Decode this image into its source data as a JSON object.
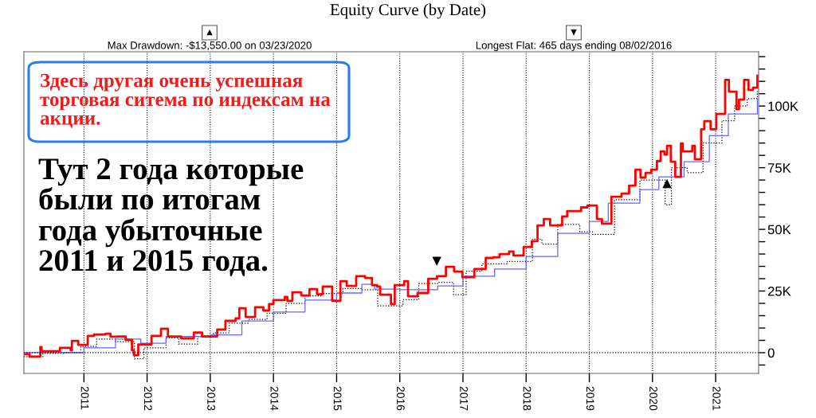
{
  "chart_data": {
    "type": "step",
    "title": "Equity Curve (by Date)",
    "xlim": [
      2010.05,
      2021.68
    ],
    "xticks": [
      2011,
      2012,
      2013,
      2014,
      2015,
      2016,
      2017,
      2018,
      2019,
      2020,
      2021
    ],
    "ylim": [
      -8.4,
      122
    ],
    "yticks": [
      {
        "value": -5,
        "label": null
      },
      0,
      {
        "value": 5,
        "label": null
      },
      {
        "value": 10,
        "label": null
      },
      {
        "value": 15,
        "label": null
      },
      {
        "value": 20,
        "label": null
      },
      {
        "value": 25,
        "label": "25K"
      },
      {
        "value": 30,
        "label": null
      },
      {
        "value": 35,
        "label": null
      },
      {
        "value": 40,
        "label": null
      },
      {
        "value": 45,
        "label": null
      },
      {
        "value": 50,
        "label": "50K"
      },
      {
        "value": 55,
        "label": null
      },
      {
        "value": 60,
        "label": null
      },
      {
        "value": 65,
        "label": null
      },
      {
        "value": 70,
        "label": null
      },
      {
        "value": 75,
        "label": "75K"
      },
      {
        "value": 80,
        "label": null
      },
      {
        "value": 85,
        "label": null
      },
      {
        "value": 90,
        "label": null
      },
      {
        "value": 95,
        "label": null
      },
      {
        "value": 100,
        "label": "100K"
      },
      {
        "value": 105,
        "label": null
      },
      {
        "value": 110,
        "label": null
      },
      {
        "value": 115,
        "label": null
      },
      {
        "value": 120,
        "label": null
      }
    ],
    "grid": "x",
    "ref_lines": [
      {
        "axis": "y",
        "value": 0,
        "label": null,
        "color": "#000000",
        "line_style": "dotted"
      }
    ],
    "series": [
      {
        "color": "#000000",
        "line_style": "dotted",
        "x": [
          2010.05,
          2010.35,
          2010.7,
          2010.95,
          2011.2,
          2011.5,
          2011.8,
          2011.95,
          2012.3,
          2012.5,
          2012.8,
          2013.05,
          2013.3,
          2013.6,
          2013.9,
          2014.2,
          2014.5,
          2014.75,
          2015.1,
          2015.4,
          2015.65,
          2015.85,
          2016.05,
          2016.3,
          2016.6,
          2016.85,
          2017.05,
          2017.3,
          2017.7,
          2018.1,
          2018.25,
          2018.5,
          2018.85,
          2019.05,
          2019.4,
          2019.8,
          2020.2,
          2020.3,
          2020.55,
          2020.8,
          2021.1,
          2021.3,
          2021.5,
          2021.66
        ],
        "values": [
          -1.6,
          -0.3,
          0,
          2.5,
          5.5,
          4.5,
          -2.5,
          2,
          6,
          3.5,
          6.5,
          8,
          12,
          13.5,
          16,
          20,
          23,
          24,
          26,
          25.5,
          19,
          19,
          21.5,
          28,
          28.5,
          23.5,
          33,
          36,
          37,
          46,
          44,
          52,
          49,
          48,
          62,
          70,
          60,
          75,
          73,
          85,
          94,
          100,
          103,
          106
        ]
      },
      {
        "color": "#6666ff",
        "line_style": "solid",
        "x": [
          2010.05,
          2011.0,
          2011.5,
          2011.9,
          2012.3,
          2012.9,
          2013.0,
          2013.5,
          2014.0,
          2014.5,
          2015.0,
          2015.4,
          2015.6,
          2016.0,
          2016.2,
          2016.6,
          2017.0,
          2017.5,
          2018.0,
          2018.5,
          2019.0,
          2019.3,
          2019.8,
          2020.1,
          2020.5,
          2020.9,
          2021.2,
          2021.66
        ],
        "values": [
          0,
          2,
          5.5,
          3.8,
          6.6,
          6.8,
          7.2,
          12.9,
          16.5,
          21.3,
          24.2,
          27.7,
          25.8,
          25.5,
          25.5,
          27.1,
          31,
          33.9,
          39,
          48.4,
          53.2,
          60.6,
          66.1,
          71.3,
          77.4,
          88,
          96.8,
          102.9
        ]
      },
      {
        "color": "#ff0000",
        "line_style": "solid",
        "x": [
          2010.05,
          2010.14,
          2010.31,
          2010.33,
          2010.62,
          2010.79,
          2010.81,
          2010.91,
          2011.06,
          2011.16,
          2011.34,
          2011.42,
          2011.53,
          2011.66,
          2011.76,
          2011.79,
          2011.86,
          2012.07,
          2012.22,
          2012.33,
          2012.54,
          2012.74,
          2012.87,
          2012.99,
          2013.11,
          2013.24,
          2013.4,
          2013.46,
          2013.56,
          2013.71,
          2013.84,
          2013.93,
          2014.0,
          2014.18,
          2014.22,
          2014.3,
          2014.44,
          2014.57,
          2014.69,
          2014.78,
          2014.93,
          2015.06,
          2015.16,
          2015.31,
          2015.45,
          2015.56,
          2015.64,
          2015.69,
          2015.86,
          2015.92,
          2016.07,
          2016.13,
          2016.28,
          2016.45,
          2016.59,
          2016.73,
          2016.86,
          2016.99,
          2017.18,
          2017.36,
          2017.48,
          2017.58,
          2017.73,
          2017.8,
          2017.96,
          2018.09,
          2018.18,
          2018.28,
          2018.38,
          2018.57,
          2018.65,
          2018.87,
          2018.97,
          2019.12,
          2019.2,
          2019.35,
          2019.51,
          2019.63,
          2019.73,
          2019.81,
          2019.89,
          2019.98,
          2020.07,
          2020.13,
          2020.19,
          2020.23,
          2020.29,
          2020.36,
          2020.45,
          2020.48,
          2020.63,
          2020.67,
          2020.77,
          2020.82,
          2020.92,
          2021.01,
          2021.15,
          2021.21,
          2021.33,
          2021.37,
          2021.45,
          2021.52,
          2021.59,
          2021.66
        ],
        "values": [
          -0.6,
          -1.6,
          2.3,
          0.6,
          2,
          1,
          4.8,
          3.2,
          6.8,
          7.4,
          7.7,
          6.5,
          6.6,
          5.2,
          1,
          -1,
          3.3,
          6.8,
          9.7,
          6.6,
          5.8,
          8.2,
          6.6,
          6.6,
          9.4,
          12.9,
          13.9,
          18,
          14.5,
          18.4,
          17.1,
          19.7,
          21.3,
          22.6,
          21,
          24.5,
          23.2,
          25.8,
          23.7,
          26.8,
          21,
          29,
          27.1,
          31,
          30.3,
          27.4,
          26.8,
          23.5,
          19.7,
          27.4,
          29,
          22.9,
          24.2,
          30,
          31,
          34.8,
          32.9,
          30.6,
          33.9,
          38.4,
          38.7,
          40,
          41,
          39.4,
          42.9,
          45.2,
          51.6,
          54.2,
          51.6,
          55.2,
          57.4,
          58.9,
          59.7,
          54.2,
          52.3,
          63.2,
          64.5,
          67.7,
          74.2,
          71,
          72.9,
          74.2,
          77.7,
          81.6,
          80.3,
          83.9,
          77.4,
          71.3,
          84.8,
          81.6,
          83.9,
          78.4,
          90.6,
          93.9,
          90.6,
          96.8,
          110.6,
          105.8,
          98.7,
          102.6,
          110.6,
          106.5,
          107.4,
          112.3
        ]
      }
    ],
    "annotations": [
      "Max Drawdown: -$13,550.00 on 03/23/2020",
      "Longest Flat: 465 days ending 08/02/2016",
      "▲",
      "▼",
      "Здесь другая очень успешная торговая ситема по индексам на акции.",
      "Тут 2 года которые были по итогам года убыточные 2011 и 2015 года.",
      {
        "text": "▲",
        "x": 2020.23,
        "y": 71.3
      },
      "▼"
    ]
  }
}
